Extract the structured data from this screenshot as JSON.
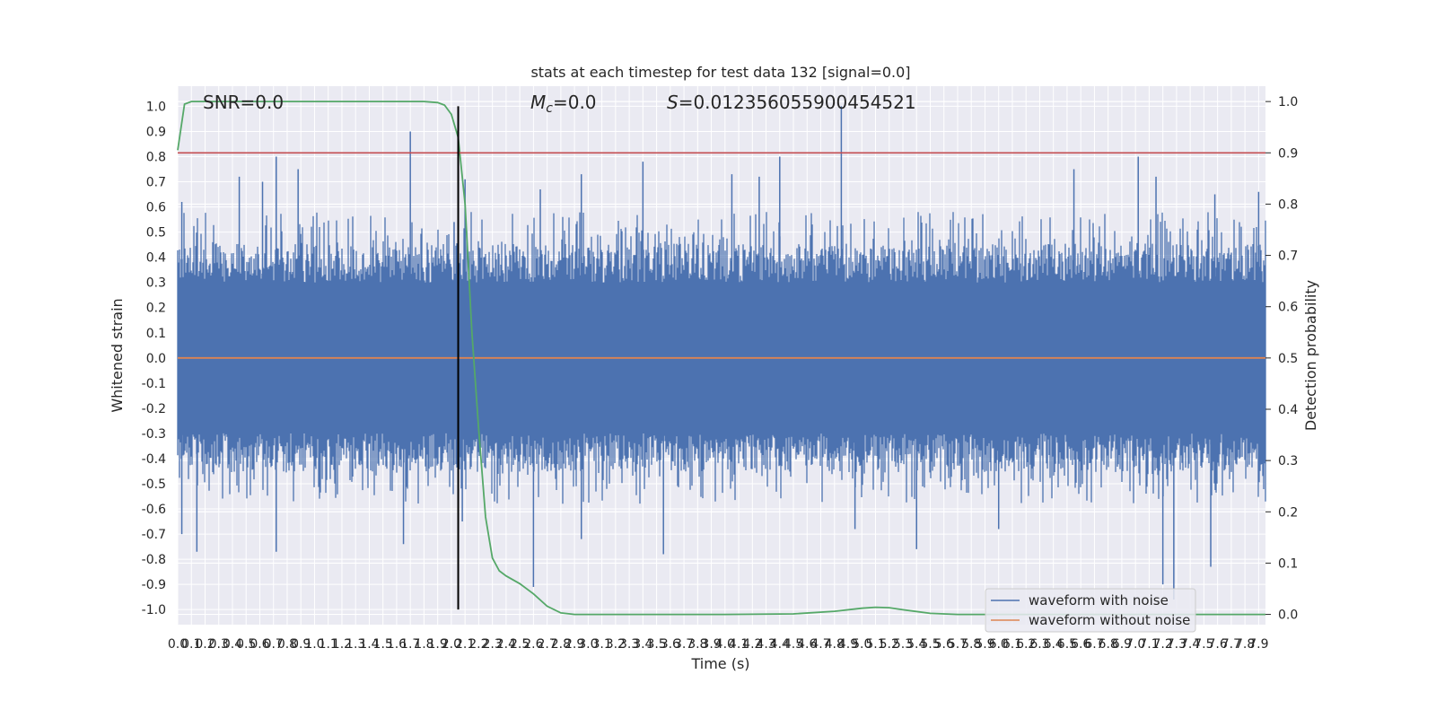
{
  "chart_data": {
    "type": "line",
    "title": "stats at each timestep for test data 132 [signal=0.0]",
    "xlabel": "Time (s)",
    "ylabel": "Whitened strain",
    "ylabel_right": "Detection probability",
    "xlim": [
      0.0,
      7.95
    ],
    "ylim": [
      -1.06,
      1.08
    ],
    "ylim_right": [
      -0.02,
      1.03
    ],
    "x_ticks": [
      "0.0",
      "0.1",
      "0.2",
      "0.3",
      "0.4",
      "0.5",
      "0.6",
      "0.7",
      "0.8",
      "0.9",
      "1.0",
      "1.1",
      "1.2",
      "1.3",
      "1.4",
      "1.5",
      "1.6",
      "1.7",
      "1.8",
      "1.9",
      "2.0",
      "2.1",
      "2.2",
      "2.3",
      "2.4",
      "2.5",
      "2.6",
      "2.7",
      "2.8",
      "2.9",
      "3.0",
      "3.1",
      "3.2",
      "3.3",
      "3.4",
      "3.5",
      "3.6",
      "3.7",
      "3.8",
      "3.9",
      "4.0",
      "4.1",
      "4.2",
      "4.3",
      "4.4",
      "4.5",
      "4.6",
      "4.7",
      "4.8",
      "4.9",
      "5.0",
      "5.1",
      "5.2",
      "5.3",
      "5.4",
      "5.5",
      "5.6",
      "5.7",
      "5.8",
      "5.9",
      "6.0",
      "6.1",
      "6.2",
      "6.3",
      "6.4",
      "6.5",
      "6.6",
      "6.7",
      "6.8",
      "6.9",
      "7.0",
      "7.1",
      "7.2",
      "7.3",
      "7.4",
      "7.5",
      "7.6",
      "7.7",
      "7.8",
      "7.9"
    ],
    "y_ticks": [
      "1.0",
      "0.9",
      "0.8",
      "0.7",
      "0.6",
      "0.5",
      "0.4",
      "0.3",
      "0.2",
      "0.1",
      "0.0",
      "-0.1",
      "-0.2",
      "-0.3",
      "-0.4",
      "-0.5",
      "-0.6",
      "-0.7",
      "-0.8",
      "-0.9",
      "-1.0"
    ],
    "y_ticks_right": [
      "1.0",
      "0.9",
      "0.8",
      "0.7",
      "0.6",
      "0.5",
      "0.4",
      "0.3",
      "0.2",
      "0.1",
      "0.0"
    ],
    "annotations": {
      "snr": "SNR=0.0",
      "mc_symbol": "M",
      "mc_sub": "c",
      "mc_value": "=0.0",
      "s_symbol": "S",
      "s_value": "=0.012356055900454521"
    },
    "series": [
      {
        "name": "waveform with noise",
        "color": "#4c72b0",
        "axis": "left",
        "kind": "noise",
        "band": 0.3,
        "peaks": [
          {
            "x": 0.03,
            "y": 0.62
          },
          {
            "x": 0.03,
            "y": -0.7
          },
          {
            "x": 0.14,
            "y": -0.77
          },
          {
            "x": 0.45,
            "y": 0.72
          },
          {
            "x": 0.62,
            "y": 0.7
          },
          {
            "x": 0.72,
            "y": 0.8
          },
          {
            "x": 0.72,
            "y": -0.77
          },
          {
            "x": 0.88,
            "y": 0.75
          },
          {
            "x": 1.7,
            "y": 0.9
          },
          {
            "x": 1.65,
            "y": -0.74
          },
          {
            "x": 2.02,
            "y": 0.54
          },
          {
            "x": 2.1,
            "y": 0.71
          },
          {
            "x": 2.08,
            "y": -0.65
          },
          {
            "x": 2.6,
            "y": -0.91
          },
          {
            "x": 2.65,
            "y": 0.67
          },
          {
            "x": 2.95,
            "y": 0.73
          },
          {
            "x": 2.95,
            "y": -0.72
          },
          {
            "x": 3.4,
            "y": 0.78
          },
          {
            "x": 3.55,
            "y": -0.78
          },
          {
            "x": 4.05,
            "y": 0.73
          },
          {
            "x": 4.25,
            "y": 0.72
          },
          {
            "x": 4.4,
            "y": 0.8
          },
          {
            "x": 4.85,
            "y": 1.0
          },
          {
            "x": 4.95,
            "y": -0.68
          },
          {
            "x": 5.4,
            "y": -0.76
          },
          {
            "x": 6.0,
            "y": -0.68
          },
          {
            "x": 6.55,
            "y": 0.75
          },
          {
            "x": 7.02,
            "y": 0.8
          },
          {
            "x": 7.15,
            "y": 0.72
          },
          {
            "x": 7.2,
            "y": -0.9
          },
          {
            "x": 7.28,
            "y": -0.96
          },
          {
            "x": 7.55,
            "y": -0.83
          },
          {
            "x": 7.58,
            "y": 0.65
          },
          {
            "x": 7.9,
            "y": 0.66
          }
        ]
      },
      {
        "name": "waveform without noise",
        "color": "#dd8452",
        "axis": "left",
        "kind": "line",
        "x": [
          0.0,
          7.95
        ],
        "y": [
          0.0,
          0.0
        ]
      },
      {
        "color": "#55a868",
        "axis": "right",
        "kind": "line",
        "x": [
          0.0,
          0.05,
          0.1,
          0.15,
          0.2,
          0.5,
          1.0,
          1.5,
          1.8,
          1.9,
          1.95,
          2.0,
          2.05,
          2.1,
          2.15,
          2.2,
          2.25,
          2.3,
          2.35,
          2.4,
          2.5,
          2.6,
          2.7,
          2.8,
          2.9,
          3.0,
          3.5,
          4.0,
          4.5,
          4.8,
          5.0,
          5.1,
          5.2,
          5.3,
          5.5,
          5.7,
          6.0,
          7.0,
          7.95
        ],
        "y": [
          0.905,
          0.995,
          1.0,
          1.0,
          1.0,
          1.0,
          1.0,
          1.0,
          1.0,
          0.998,
          0.993,
          0.975,
          0.93,
          0.8,
          0.55,
          0.36,
          0.19,
          0.11,
          0.085,
          0.075,
          0.06,
          0.04,
          0.016,
          0.003,
          0.0,
          0.0,
          0.0,
          0.0,
          0.001,
          0.006,
          0.012,
          0.014,
          0.013,
          0.009,
          0.002,
          0.0,
          0.0,
          0.0,
          0.0
        ]
      },
      {
        "color": "#c44e52",
        "axis": "right",
        "kind": "hline",
        "y": 0.9
      },
      {
        "color": "#000000",
        "axis": "left",
        "kind": "vline",
        "x": 2.05,
        "y": [
          -1.0,
          1.0
        ]
      }
    ],
    "legend": "lower-right",
    "grid": true,
    "colors": {
      "axes_bg": "#eaeaf2",
      "grid": "#ffffff"
    }
  }
}
